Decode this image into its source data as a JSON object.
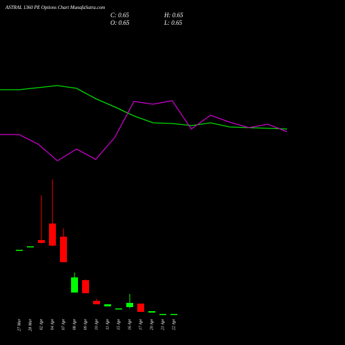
{
  "chart_data": [
    {
      "type": "candlestick",
      "title": "ASTRAL  1360  PE Options  Chart MunafaSutra.com",
      "ohlc_labels": [
        "C: 0.65",
        "H: 0.65",
        "O: 0.65",
        "L: 0.65"
      ],
      "categories": [
        "27 Mar",
        "28 Mar",
        "02 Apr",
        "04 Apr",
        "07 Apr",
        "08 Apr",
        "09 Apr",
        "10 Apr",
        "11 Apr",
        "15 Apr",
        "16 Apr",
        "17 Apr",
        "20 Apr",
        "21 Apr",
        "22 Apr"
      ],
      "open": [
        5.3,
        5.55,
        6.0,
        7.2,
        6.25,
        2.2,
        3.1,
        1.6,
        1.2,
        1.05,
        1.15,
        1.4,
        0.75,
        0.65,
        0.65
      ],
      "high": [
        5.3,
        5.55,
        9.25,
        10.4,
        6.85,
        3.65,
        3.15,
        1.75,
        1.35,
        1.05,
        2.1,
        1.4,
        0.85,
        0.65,
        0.65
      ],
      "low": [
        5.3,
        5.55,
        5.75,
        5.55,
        4.4,
        2.2,
        2.15,
        1.35,
        1.2,
        1.05,
        1.05,
        0.8,
        0.75,
        0.65,
        0.65
      ],
      "close": [
        5.3,
        5.55,
        5.8,
        5.6,
        4.4,
        3.3,
        2.15,
        1.35,
        1.35,
        1.05,
        1.45,
        0.8,
        0.85,
        0.65,
        0.65
      ],
      "up_color": "#00ff00",
      "down_color": "#ff0000",
      "ylim": [
        0.4,
        11.4
      ]
    },
    {
      "type": "line",
      "x": [
        0,
        1,
        2,
        3,
        4,
        5,
        6,
        7,
        8,
        9,
        10,
        11,
        12,
        13,
        14,
        15
      ],
      "xlim": [
        0,
        15
      ],
      "ylim": [
        0,
        150
      ],
      "series": [
        {
          "color": "#00dd00",
          "values": [
            120,
            120,
            123,
            126,
            122,
            107,
            95,
            82,
            72,
            71,
            68,
            72,
            66,
            65,
            64,
            63
          ]
        },
        {
          "color": "#cc00cc",
          "values": [
            55,
            55,
            41,
            17,
            34,
            19,
            51,
            103,
            99,
            104,
            63,
            83,
            73,
            65,
            70,
            59
          ]
        }
      ]
    }
  ]
}
